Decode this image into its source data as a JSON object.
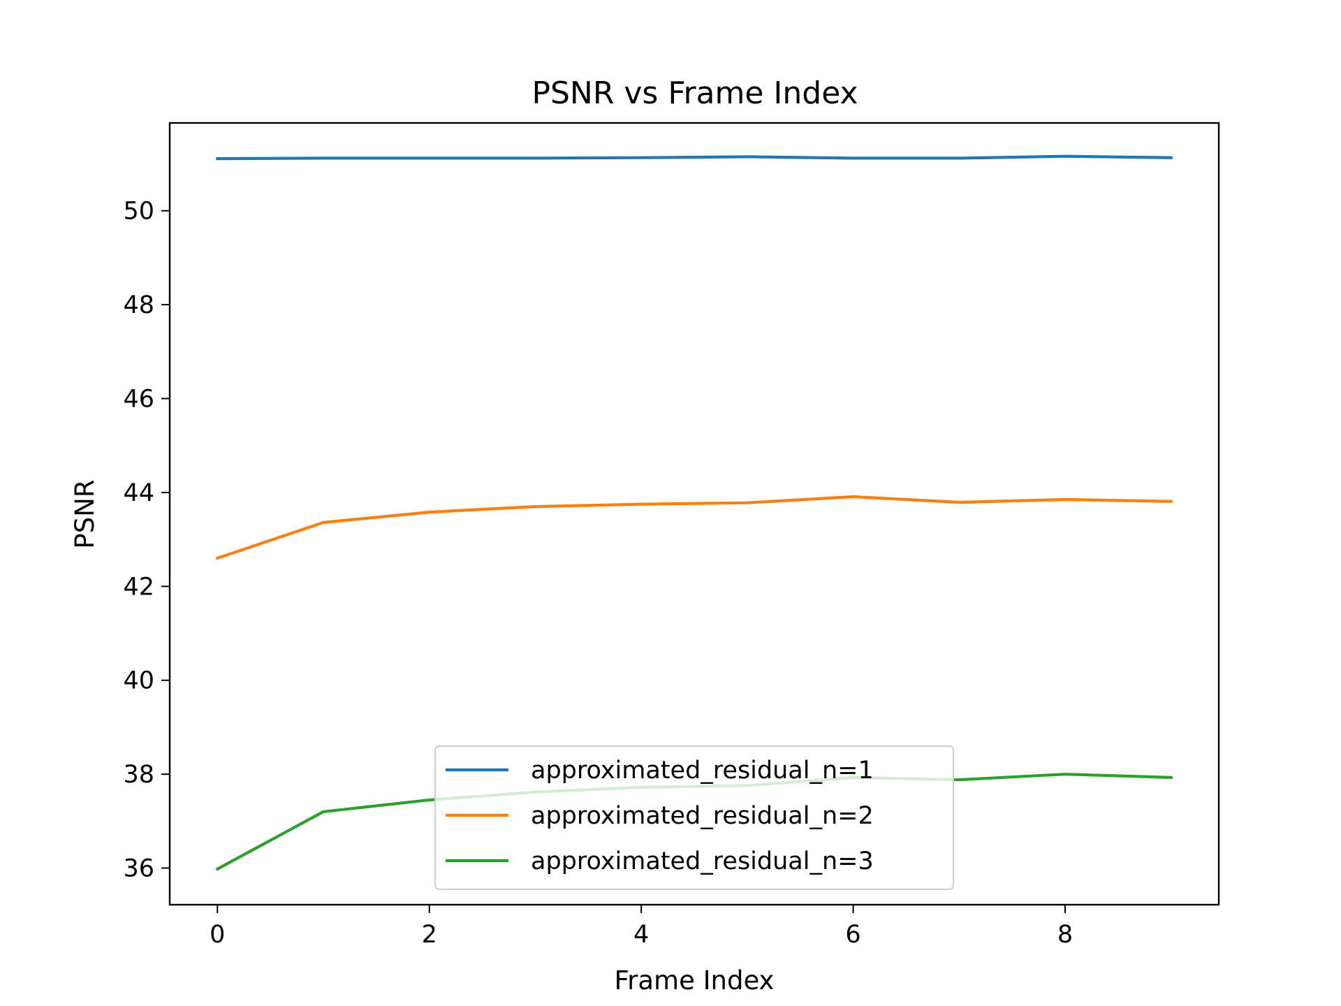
{
  "chart_data": {
    "type": "line",
    "title": "PSNR vs Frame Index",
    "xlabel": "Frame Index",
    "ylabel": "PSNR",
    "x": [
      0,
      1,
      2,
      3,
      4,
      5,
      6,
      7,
      8,
      9
    ],
    "xlim": [
      -0.45,
      9.45
    ],
    "ylim": [
      35.22,
      51.87
    ],
    "xticks": [
      0,
      2,
      4,
      6,
      8
    ],
    "yticks": [
      36,
      38,
      40,
      42,
      44,
      46,
      48,
      50
    ],
    "grid": false,
    "legend_position": "lower center",
    "series": [
      {
        "name": "approximated_residual_n=1",
        "color": "#1f77b4",
        "values": [
          51.11,
          51.12,
          51.12,
          51.12,
          51.13,
          51.15,
          51.12,
          51.12,
          51.16,
          51.13
        ]
      },
      {
        "name": "approximated_residual_n=2",
        "color": "#ff7f0e",
        "values": [
          42.6,
          43.36,
          43.58,
          43.7,
          43.75,
          43.78,
          43.91,
          43.79,
          43.85,
          43.81
        ]
      },
      {
        "name": "approximated_residual_n=3",
        "color": "#2ca02c",
        "values": [
          35.98,
          37.2,
          37.45,
          37.62,
          37.72,
          37.76,
          37.93,
          37.88,
          38.0,
          37.93
        ]
      }
    ]
  }
}
